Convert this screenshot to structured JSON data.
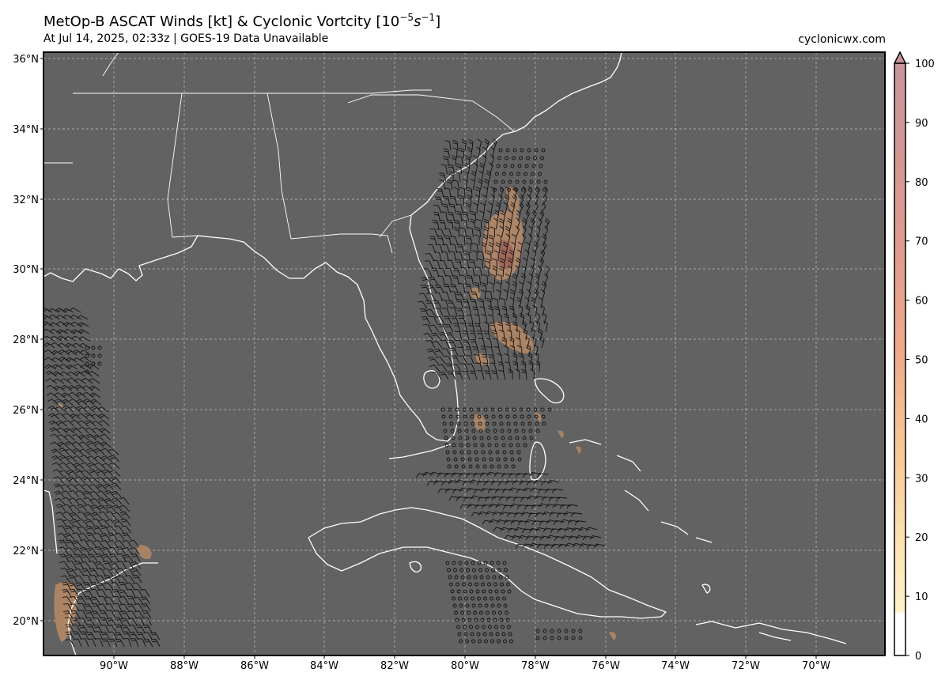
{
  "header": {
    "title_main": "MetOp-B ASCAT Winds [kt] & Cyclonic Vortcity [10",
    "title_exp1": "−5",
    "title_mid": "s",
    "title_exp2": "−1",
    "title_end": "]",
    "subtitle": "At Jul 14, 2025, 02:33z | GOES-19 Data Unavailable",
    "credit": "cyclonicwx.com"
  },
  "map": {
    "ocean_color": "#626262",
    "coast_color": "#ffffff",
    "grid_color": "#c8c8c8",
    "barb_color": "#111111",
    "lon_range": [
      -92,
      -68
    ],
    "lat_range": [
      19,
      36.2
    ],
    "lat_labels": [
      "36°N",
      "34°N",
      "32°N",
      "30°N",
      "28°N",
      "26°N",
      "24°N",
      "22°N",
      "20°N"
    ],
    "lon_labels": [
      "90°W",
      "88°W",
      "86°W",
      "84°W",
      "82°W",
      "80°W",
      "78°W",
      "76°W",
      "74°W",
      "72°W",
      "70°W"
    ]
  },
  "colorbar": {
    "ticks": [
      "100",
      "90",
      "80",
      "70",
      "60",
      "50",
      "40",
      "30",
      "20",
      "10",
      "0"
    ],
    "stops": [
      "#ffffff",
      "#fff0c8",
      "#f8d29a",
      "#f1b089",
      "#e39c8d",
      "#d48f92",
      "#c79395"
    ]
  }
}
